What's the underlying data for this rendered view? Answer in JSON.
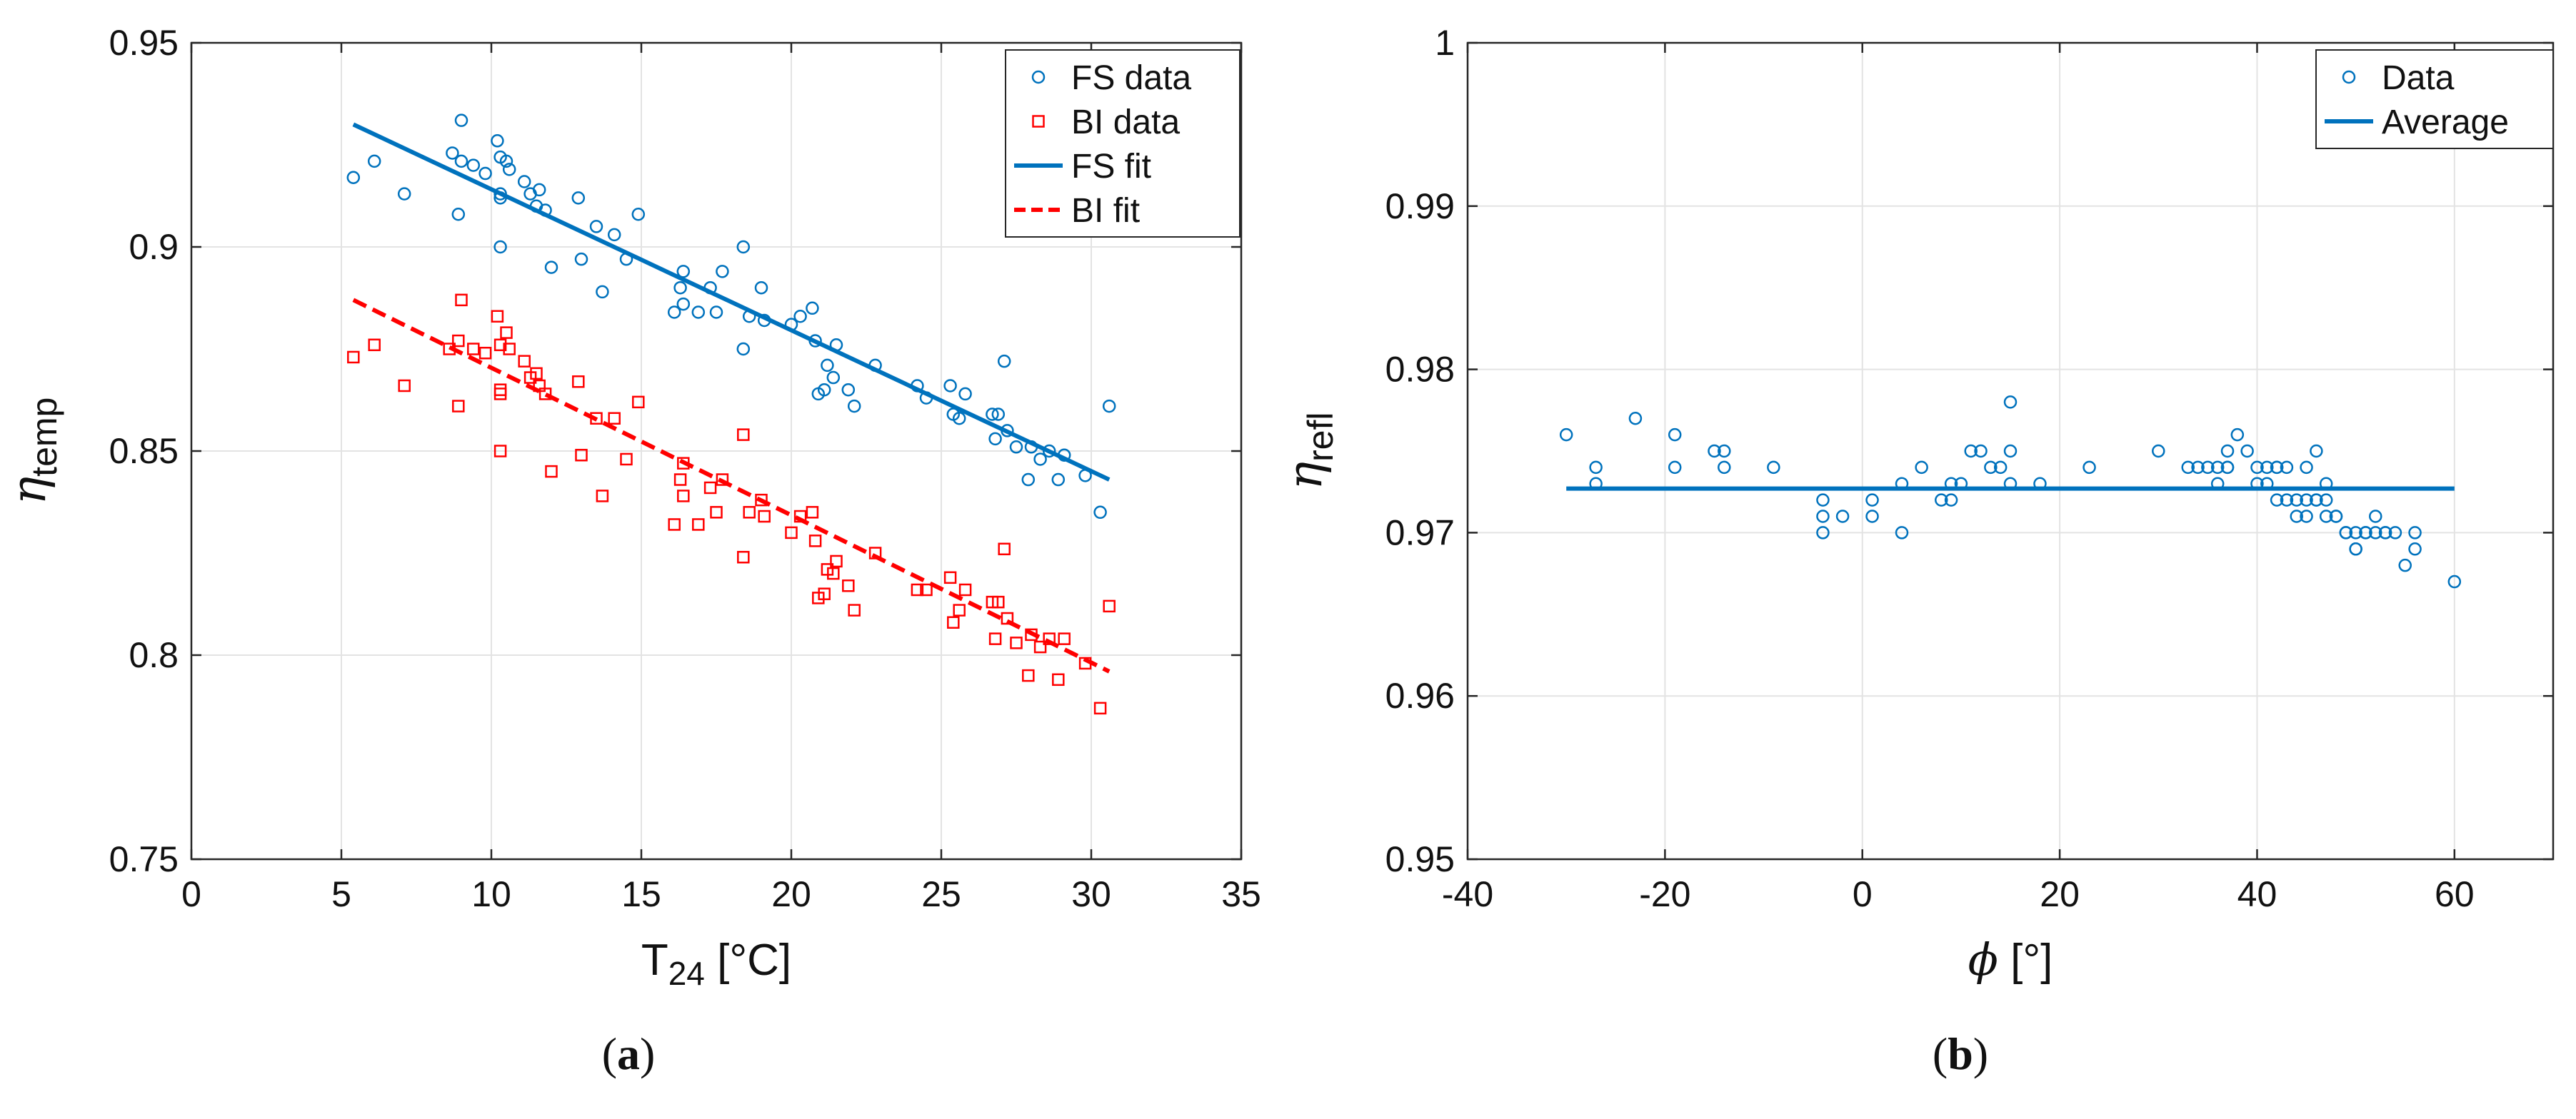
{
  "chart_data": [
    {
      "type": "scatter",
      "panel": "a",
      "caption_letter": "a",
      "xlabel": "T",
      "xlabel_sub": "24",
      "xlabel_unit": " [°C]",
      "ylabel": "η",
      "ylabel_sub": "temp",
      "xlim": [
        0,
        35
      ],
      "ylim": [
        0.75,
        0.95
      ],
      "xticks": [
        0,
        5,
        10,
        15,
        20,
        25,
        30,
        35
      ],
      "yticks": [
        0.75,
        0.8,
        0.85,
        0.9,
        0.95
      ],
      "xtick_labels": [
        "0",
        "5",
        "10",
        "15",
        "20",
        "25",
        "30",
        "35"
      ],
      "ytick_labels": [
        "0.75",
        "0.8",
        "0.85",
        "0.9",
        "0.95"
      ],
      "grid": true,
      "legend_position": "top-right",
      "series": [
        {
          "name": "FS data",
          "kind": "marker",
          "marker": "circle",
          "color": "#0072BD",
          "points": [
            [
              5.4,
              0.917
            ],
            [
              6.1,
              0.921
            ],
            [
              7.1,
              0.913
            ],
            [
              8.7,
              0.923
            ],
            [
              8.9,
              0.908
            ],
            [
              9.0,
              0.931
            ],
            [
              9.0,
              0.921
            ],
            [
              9.4,
              0.92
            ],
            [
              9.8,
              0.918
            ],
            [
              10.2,
              0.926
            ],
            [
              10.3,
              0.922
            ],
            [
              10.3,
              0.913
            ],
            [
              10.3,
              0.912
            ],
            [
              10.3,
              0.9
            ],
            [
              10.5,
              0.921
            ],
            [
              10.6,
              0.919
            ],
            [
              11.1,
              0.916
            ],
            [
              11.3,
              0.913
            ],
            [
              11.5,
              0.91
            ],
            [
              11.6,
              0.914
            ],
            [
              11.8,
              0.909
            ],
            [
              12.0,
              0.895
            ],
            [
              12.9,
              0.912
            ],
            [
              13.0,
              0.897
            ],
            [
              13.5,
              0.905
            ],
            [
              13.7,
              0.889
            ],
            [
              14.1,
              0.903
            ],
            [
              14.5,
              0.897
            ],
            [
              14.9,
              0.908
            ],
            [
              16.1,
              0.884
            ],
            [
              16.3,
              0.89
            ],
            [
              16.4,
              0.894
            ],
            [
              16.4,
              0.886
            ],
            [
              16.9,
              0.884
            ],
            [
              17.3,
              0.89
            ],
            [
              17.5,
              0.884
            ],
            [
              17.7,
              0.894
            ],
            [
              18.4,
              0.9
            ],
            [
              18.4,
              0.875
            ],
            [
              18.6,
              0.883
            ],
            [
              19.0,
              0.89
            ],
            [
              19.1,
              0.882
            ],
            [
              20.0,
              0.881
            ],
            [
              20.3,
              0.883
            ],
            [
              20.7,
              0.885
            ],
            [
              20.8,
              0.877
            ],
            [
              20.9,
              0.864
            ],
            [
              21.1,
              0.865
            ],
            [
              21.2,
              0.871
            ],
            [
              21.4,
              0.868
            ],
            [
              21.5,
              0.876
            ],
            [
              21.9,
              0.865
            ],
            [
              22.1,
              0.861
            ],
            [
              22.8,
              0.871
            ],
            [
              24.2,
              0.866
            ],
            [
              24.5,
              0.863
            ],
            [
              25.3,
              0.866
            ],
            [
              25.4,
              0.859
            ],
            [
              25.6,
              0.858
            ],
            [
              25.8,
              0.864
            ],
            [
              26.7,
              0.859
            ],
            [
              26.8,
              0.853
            ],
            [
              26.9,
              0.859
            ],
            [
              27.1,
              0.872
            ],
            [
              27.2,
              0.855
            ],
            [
              27.5,
              0.851
            ],
            [
              27.9,
              0.843
            ],
            [
              28.0,
              0.851
            ],
            [
              28.3,
              0.848
            ],
            [
              28.6,
              0.85
            ],
            [
              28.9,
              0.843
            ],
            [
              29.1,
              0.849
            ],
            [
              29.8,
              0.844
            ],
            [
              30.3,
              0.835
            ],
            [
              30.6,
              0.861
            ]
          ]
        },
        {
          "name": "BI data",
          "kind": "marker",
          "marker": "square",
          "color": "#FF0000",
          "points": [
            [
              5.4,
              0.873
            ],
            [
              6.1,
              0.876
            ],
            [
              7.1,
              0.866
            ],
            [
              8.6,
              0.875
            ],
            [
              8.9,
              0.861
            ],
            [
              8.9,
              0.877
            ],
            [
              9.0,
              0.887
            ],
            [
              9.4,
              0.875
            ],
            [
              9.8,
              0.874
            ],
            [
              10.2,
              0.883
            ],
            [
              10.3,
              0.876
            ],
            [
              10.3,
              0.865
            ],
            [
              10.3,
              0.864
            ],
            [
              10.3,
              0.85
            ],
            [
              10.5,
              0.879
            ],
            [
              10.6,
              0.875
            ],
            [
              11.1,
              0.872
            ],
            [
              11.3,
              0.868
            ],
            [
              11.5,
              0.869
            ],
            [
              11.6,
              0.866
            ],
            [
              11.8,
              0.864
            ],
            [
              12.0,
              0.845
            ],
            [
              12.9,
              0.867
            ],
            [
              13.0,
              0.849
            ],
            [
              13.5,
              0.858
            ],
            [
              13.7,
              0.839
            ],
            [
              14.1,
              0.858
            ],
            [
              14.5,
              0.848
            ],
            [
              14.9,
              0.862
            ],
            [
              16.1,
              0.832
            ],
            [
              16.3,
              0.843
            ],
            [
              16.4,
              0.847
            ],
            [
              16.4,
              0.839
            ],
            [
              16.9,
              0.832
            ],
            [
              17.3,
              0.841
            ],
            [
              17.5,
              0.835
            ],
            [
              17.7,
              0.843
            ],
            [
              18.4,
              0.854
            ],
            [
              18.4,
              0.824
            ],
            [
              18.6,
              0.835
            ],
            [
              19.0,
              0.838
            ],
            [
              19.1,
              0.834
            ],
            [
              20.0,
              0.83
            ],
            [
              20.3,
              0.834
            ],
            [
              20.7,
              0.835
            ],
            [
              20.8,
              0.828
            ],
            [
              20.9,
              0.814
            ],
            [
              21.1,
              0.815
            ],
            [
              21.2,
              0.821
            ],
            [
              21.4,
              0.82
            ],
            [
              21.5,
              0.823
            ],
            [
              21.9,
              0.817
            ],
            [
              22.1,
              0.811
            ],
            [
              22.8,
              0.825
            ],
            [
              24.2,
              0.816
            ],
            [
              24.5,
              0.816
            ],
            [
              25.3,
              0.819
            ],
            [
              25.4,
              0.808
            ],
            [
              25.6,
              0.811
            ],
            [
              25.8,
              0.816
            ],
            [
              26.7,
              0.813
            ],
            [
              26.8,
              0.804
            ],
            [
              26.9,
              0.813
            ],
            [
              27.1,
              0.826
            ],
            [
              27.2,
              0.809
            ],
            [
              27.5,
              0.803
            ],
            [
              27.9,
              0.795
            ],
            [
              28.0,
              0.805
            ],
            [
              28.3,
              0.802
            ],
            [
              28.6,
              0.804
            ],
            [
              28.9,
              0.794
            ],
            [
              29.1,
              0.804
            ],
            [
              29.8,
              0.798
            ],
            [
              30.3,
              0.787
            ],
            [
              30.6,
              0.812
            ]
          ]
        },
        {
          "name": "FS fit",
          "kind": "line",
          "style": "solid",
          "color": "#0072BD",
          "x": [
            5.4,
            30.6
          ],
          "y": [
            0.93,
            0.843
          ]
        },
        {
          "name": "BI fit",
          "kind": "line",
          "style": "dashed",
          "color": "#FF0000",
          "x": [
            5.4,
            30.6
          ],
          "y": [
            0.887,
            0.796
          ]
        }
      ]
    },
    {
      "type": "scatter",
      "panel": "b",
      "caption_letter": "b",
      "xlabel": "ϕ",
      "xlabel_sub": "",
      "xlabel_unit": " [°]",
      "ylabel": "η",
      "ylabel_sub": "refl",
      "xlim": [
        -40,
        70
      ],
      "ylim": [
        0.95,
        1.0
      ],
      "xticks": [
        -40,
        -20,
        0,
        20,
        40,
        60
      ],
      "yticks": [
        0.95,
        0.96,
        0.97,
        0.98,
        0.99,
        1.0
      ],
      "xtick_labels": [
        "-40",
        "-20",
        "0",
        "20",
        "40",
        "60"
      ],
      "ytick_labels": [
        "0.95",
        "0.96",
        "0.97",
        "0.98",
        "0.99",
        "1"
      ],
      "grid": true,
      "legend_position": "top-right",
      "series": [
        {
          "name": "Data",
          "kind": "marker",
          "marker": "circle",
          "color": "#0072BD",
          "points": [
            [
              -30,
              0.976
            ],
            [
              -27,
              0.974
            ],
            [
              -27,
              0.973
            ],
            [
              -23,
              0.977
            ],
            [
              -19,
              0.976
            ],
            [
              -19,
              0.974
            ],
            [
              -15,
              0.975
            ],
            [
              -14,
              0.975
            ],
            [
              -14,
              0.974
            ],
            [
              -9,
              0.974
            ],
            [
              -4,
              0.972
            ],
            [
              -4,
              0.971
            ],
            [
              -4,
              0.97
            ],
            [
              -2,
              0.971
            ],
            [
              1,
              0.972
            ],
            [
              1,
              0.971
            ],
            [
              4,
              0.973
            ],
            [
              4,
              0.97
            ],
            [
              6,
              0.974
            ],
            [
              8,
              0.972
            ],
            [
              9,
              0.972
            ],
            [
              9,
              0.973
            ],
            [
              10,
              0.973
            ],
            [
              11,
              0.975
            ],
            [
              12,
              0.975
            ],
            [
              13,
              0.974
            ],
            [
              14,
              0.974
            ],
            [
              15,
              0.978
            ],
            [
              15,
              0.975
            ],
            [
              15,
              0.973
            ],
            [
              18,
              0.973
            ],
            [
              23,
              0.974
            ],
            [
              30,
              0.975
            ],
            [
              33,
              0.974
            ],
            [
              34,
              0.974
            ],
            [
              35,
              0.974
            ],
            [
              36,
              0.973
            ],
            [
              36,
              0.974
            ],
            [
              37,
              0.975
            ],
            [
              37,
              0.974
            ],
            [
              37,
              0.974
            ],
            [
              38,
              0.976
            ],
            [
              39,
              0.975
            ],
            [
              40,
              0.974
            ],
            [
              40,
              0.973
            ],
            [
              41,
              0.974
            ],
            [
              41,
              0.973
            ],
            [
              42,
              0.974
            ],
            [
              42,
              0.974
            ],
            [
              42,
              0.972
            ],
            [
              43,
              0.974
            ],
            [
              43,
              0.972
            ],
            [
              44,
              0.972
            ],
            [
              44,
              0.971
            ],
            [
              45,
              0.972
            ],
            [
              45,
              0.971
            ],
            [
              45,
              0.974
            ],
            [
              46,
              0.972
            ],
            [
              46,
              0.972
            ],
            [
              46,
              0.975
            ],
            [
              47,
              0.973
            ],
            [
              47,
              0.971
            ],
            [
              47,
              0.972
            ],
            [
              48,
              0.971
            ],
            [
              48,
              0.971
            ],
            [
              49,
              0.97
            ],
            [
              49,
              0.97
            ],
            [
              50,
              0.97
            ],
            [
              50,
              0.969
            ],
            [
              50,
              0.969
            ],
            [
              51,
              0.97
            ],
            [
              51,
              0.97
            ],
            [
              52,
              0.971
            ],
            [
              52,
              0.97
            ],
            [
              53,
              0.97
            ],
            [
              53,
              0.97
            ],
            [
              54,
              0.97
            ],
            [
              55,
              0.968
            ],
            [
              56,
              0.969
            ],
            [
              56,
              0.97
            ],
            [
              60,
              0.967
            ]
          ]
        },
        {
          "name": "Average",
          "kind": "line",
          "style": "solid",
          "color": "#0072BD",
          "x": [
            -30,
            60
          ],
          "y": [
            0.9727,
            0.9727
          ]
        }
      ]
    }
  ]
}
